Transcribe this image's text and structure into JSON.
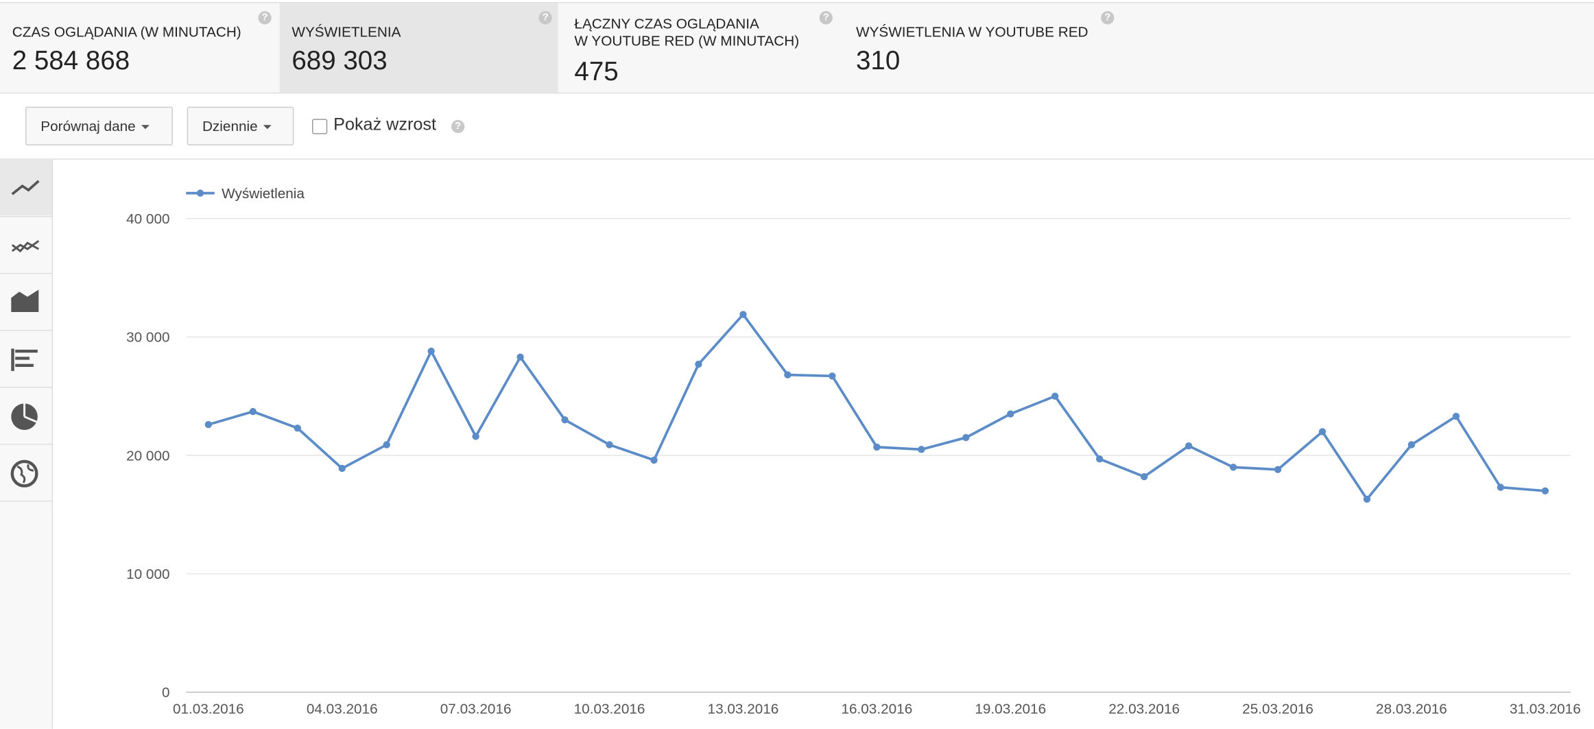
{
  "tabs": [
    {
      "label": "CZAS OGLĄDANIA (W MINUTACH)",
      "value": "2 584 868"
    },
    {
      "label": "WYŚWIETLENIA",
      "value": "689 303"
    },
    {
      "label": "ŁĄCZNY CZAS OGLĄDANIA\nW YOUTUBE RED (W MINUTACH)",
      "value": "475"
    },
    {
      "label": "WYŚWIETLENIA W YOUTUBE RED",
      "value": "310"
    }
  ],
  "controls": {
    "compare": "Porównaj dane",
    "period": "Dziennie",
    "growth": "Pokaż wzrost"
  },
  "chart_data": {
    "type": "line",
    "categories": [
      "01.03.2016",
      null,
      null,
      "04.03.2016",
      null,
      null,
      "07.03.2016",
      null,
      null,
      "10.03.2016",
      null,
      null,
      "13.03.2016",
      null,
      null,
      "16.03.2016",
      null,
      null,
      "19.03.2016",
      null,
      null,
      "22.03.2016",
      null,
      null,
      "25.03.2016",
      null,
      null,
      "28.03.2016",
      null,
      null,
      "31.03.2016"
    ],
    "series": [
      {
        "name": "Wyświetlenia",
        "color": "#5b8cc7",
        "values": [
          22600,
          23700,
          22300,
          18900,
          20900,
          28800,
          21600,
          28300,
          23000,
          20900,
          19600,
          27700,
          31900,
          26800,
          26700,
          20700,
          20500,
          21500,
          23500,
          25000,
          19700,
          18200,
          20800,
          19000,
          18800,
          22000,
          16300,
          20900,
          23300,
          17300,
          17000
        ]
      }
    ],
    "ylim": [
      0,
      40000
    ],
    "yticks": [
      {
        "value": 0,
        "label": "0"
      },
      {
        "value": 10000,
        "label": "10 000"
      },
      {
        "value": 20000,
        "label": "20 000"
      },
      {
        "value": 30000,
        "label": "30 000"
      },
      {
        "value": 40000,
        "label": "40 000"
      }
    ],
    "grid": true
  }
}
